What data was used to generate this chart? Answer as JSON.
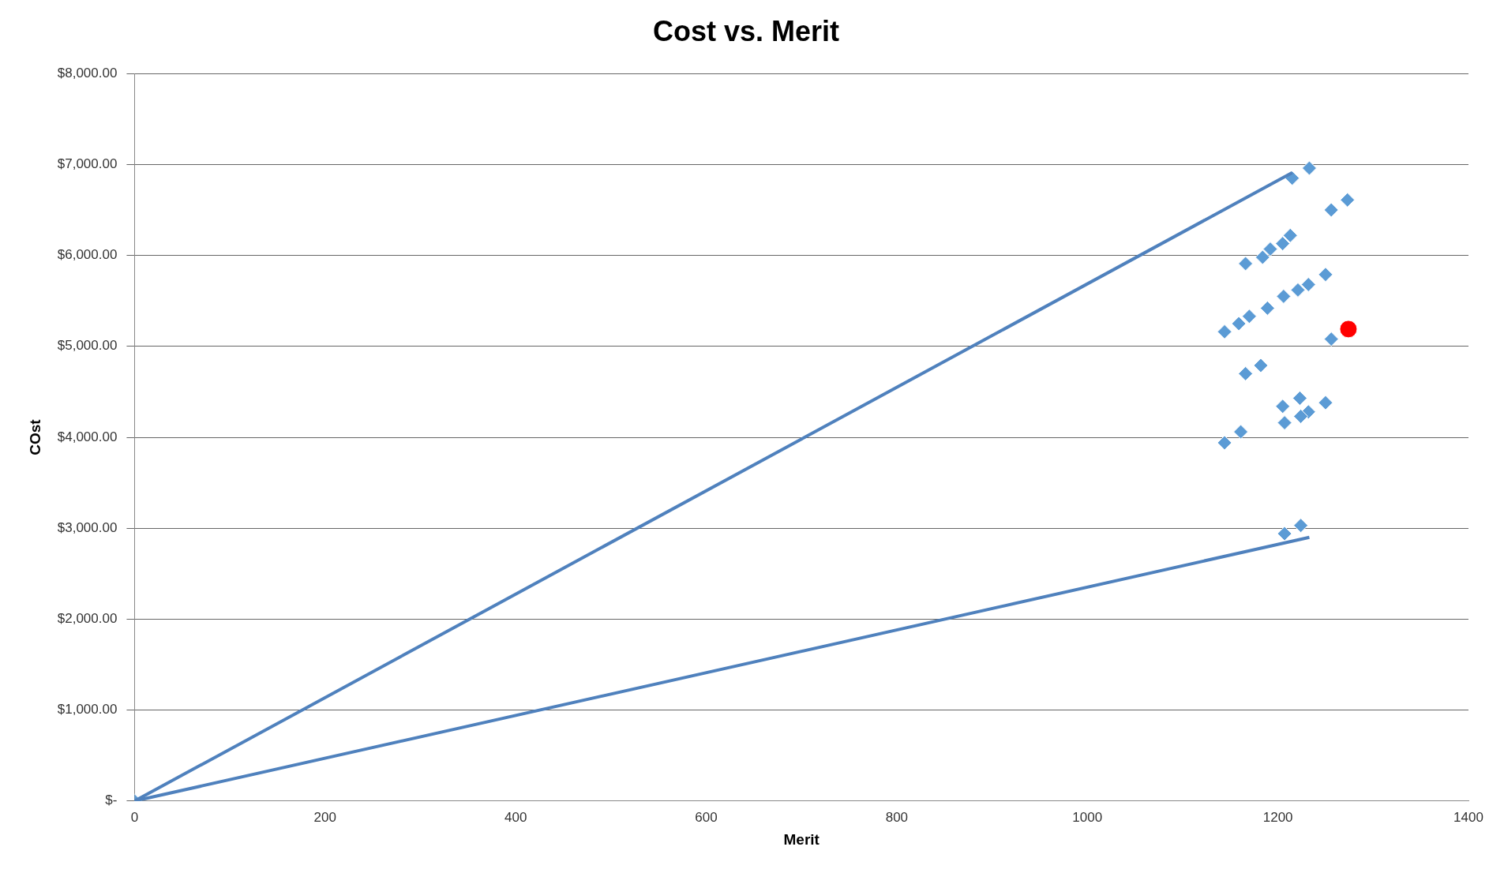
{
  "chart_data": {
    "type": "scatter",
    "title": "Cost vs. Merit",
    "xlabel": "Merit",
    "ylabel": "COst",
    "xlim": [
      0,
      1400
    ],
    "xticks": [
      0,
      200,
      400,
      600,
      800,
      1000,
      1200,
      1400
    ],
    "ylim": [
      0,
      8000
    ],
    "yticks": [
      {
        "value": 0,
        "label": "$-"
      },
      {
        "value": 1000,
        "label": "$1,000.00"
      },
      {
        "value": 2000,
        "label": "$2,000.00"
      },
      {
        "value": 3000,
        "label": "$3,000.00"
      },
      {
        "value": 4000,
        "label": "$4,000.00"
      },
      {
        "value": 5000,
        "label": "$5,000.00"
      },
      {
        "value": 6000,
        "label": "$6,000.00"
      },
      {
        "value": 7000,
        "label": "$7,000.00"
      },
      {
        "value": 8000,
        "label": "$8,000.00"
      }
    ],
    "grid": "y",
    "legend": false,
    "series": [
      {
        "type": "line",
        "marker": "none",
        "color": "#4f81bd",
        "x": [
          0,
          1215
        ],
        "values": [
          0,
          6910
        ]
      },
      {
        "type": "line",
        "marker": "none",
        "color": "#4f81bd",
        "x": [
          0,
          1233
        ],
        "values": [
          0,
          2900
        ]
      },
      {
        "type": "scatter",
        "marker": "diamond",
        "color": "#5b9bd5",
        "x": [
          0,
          1215,
          1233,
          1256,
          1273,
          1166,
          1184,
          1192,
          1205,
          1213,
          1144,
          1159,
          1170,
          1189,
          1206,
          1221,
          1232,
          1250,
          1256,
          1166,
          1182,
          1205,
          1223,
          1232,
          1250,
          1207,
          1224,
          1144,
          1161,
          1207,
          1224
        ],
        "values": [
          0,
          6850,
          6960,
          6500,
          6610,
          5910,
          5980,
          6070,
          6130,
          6220,
          5160,
          5250,
          5330,
          5420,
          5550,
          5620,
          5680,
          5790,
          5080,
          4700,
          4790,
          4340,
          4430,
          4280,
          4380,
          4160,
          4230,
          3940,
          4060,
          2940,
          3030
        ]
      },
      {
        "type": "scatter",
        "marker": "circle",
        "color": "#ff0000",
        "x": [
          1274
        ],
        "values": [
          5190
        ]
      }
    ]
  }
}
